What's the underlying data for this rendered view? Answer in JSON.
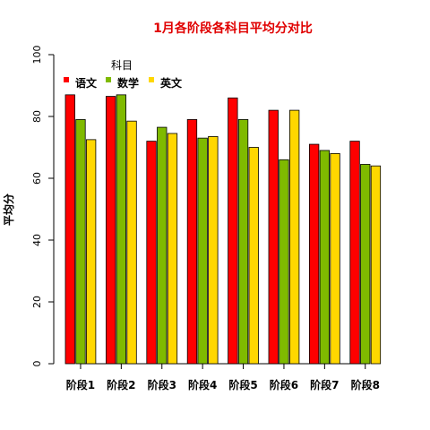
{
  "chart_data": {
    "type": "bar",
    "title": "1月各阶段各科目平均分对比",
    "title_color": "#e00000",
    "xlabel": "",
    "ylabel": "平均分",
    "ylim": [
      0,
      100
    ],
    "yticks": [
      0,
      20,
      40,
      60,
      80,
      100
    ],
    "grid": false,
    "legend": {
      "title": "科目",
      "placement": "top-left"
    },
    "categories": [
      "阶段1",
      "阶段2",
      "阶段3",
      "阶段4",
      "阶段5",
      "阶段6",
      "阶段7",
      "阶段8"
    ],
    "series": [
      {
        "name": "语文",
        "color": "#ff0000",
        "values": [
          87,
          86.5,
          72,
          79,
          86,
          82,
          71,
          72
        ]
      },
      {
        "name": "数学",
        "color": "#7fba00",
        "values": [
          79,
          87,
          76.5,
          73,
          79,
          66,
          69,
          64.5
        ]
      },
      {
        "name": "英文",
        "color": "#ffd700",
        "values": [
          72.5,
          78.5,
          74.5,
          73.5,
          70,
          82,
          68,
          64
        ]
      }
    ]
  }
}
